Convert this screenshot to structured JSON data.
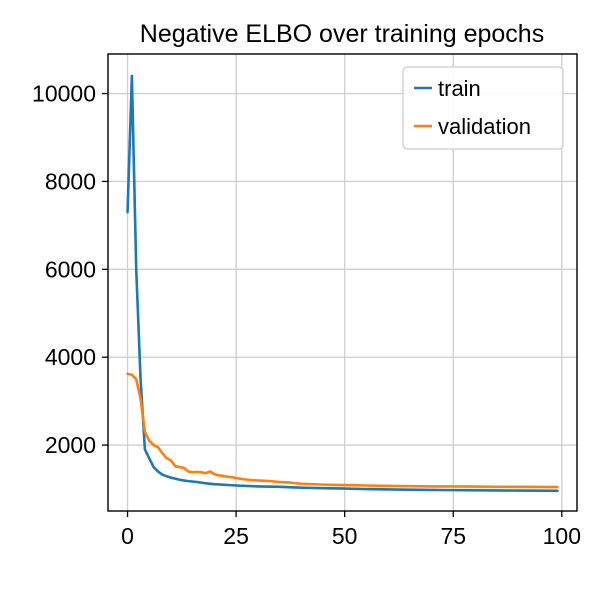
{
  "chart_data": {
    "type": "line",
    "title": "Negative ELBO over training epochs",
    "xlabel": "",
    "ylabel": "",
    "xlim": [
      -4.5,
      103.5
    ],
    "ylim": [
      500,
      10900
    ],
    "xticks": [
      0,
      25,
      50,
      75,
      100
    ],
    "yticks": [
      2000,
      4000,
      6000,
      8000,
      10000
    ],
    "grid": true,
    "legend": "top-right",
    "series": [
      {
        "name": "train",
        "color": "#1f77b4",
        "x": [
          0,
          1,
          2,
          3,
          4,
          5,
          6,
          7,
          8,
          9,
          10,
          12,
          14,
          16,
          18,
          20,
          25,
          30,
          35,
          40,
          45,
          50,
          55,
          60,
          65,
          70,
          75,
          80,
          85,
          90,
          95,
          99
        ],
        "y": [
          7300,
          10400,
          6000,
          3500,
          1900,
          1700,
          1500,
          1400,
          1330,
          1290,
          1260,
          1210,
          1180,
          1160,
          1130,
          1110,
          1080,
          1060,
          1050,
          1030,
          1020,
          1010,
          1000,
          990,
          985,
          980,
          975,
          970,
          968,
          965,
          962,
          960
        ]
      },
      {
        "name": "validation",
        "color": "#ff7f0e",
        "x": [
          0,
          1,
          2,
          3,
          4,
          5,
          6,
          7,
          8,
          9,
          10,
          11,
          12,
          13,
          14,
          15,
          16,
          17,
          18,
          19,
          20,
          21,
          22,
          23,
          24,
          25,
          27,
          29,
          31,
          33,
          35,
          37,
          40,
          45,
          50,
          55,
          60,
          65,
          70,
          75,
          80,
          85,
          90,
          95,
          99
        ],
        "y": [
          3620,
          3600,
          3500,
          3050,
          2300,
          2100,
          2000,
          1950,
          1820,
          1700,
          1650,
          1520,
          1500,
          1480,
          1400,
          1380,
          1390,
          1380,
          1360,
          1400,
          1340,
          1310,
          1300,
          1280,
          1270,
          1250,
          1220,
          1200,
          1190,
          1180,
          1160,
          1150,
          1120,
          1100,
          1090,
          1080,
          1070,
          1065,
          1060,
          1058,
          1055,
          1052,
          1050,
          1048,
          1045
        ]
      }
    ]
  }
}
